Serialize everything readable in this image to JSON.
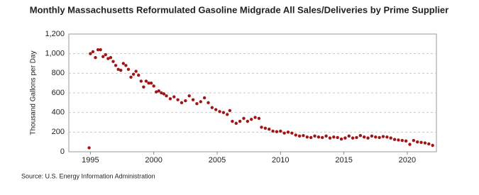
{
  "chart_data": {
    "type": "scatter",
    "title": "Monthly Massachusetts Reformulated Gasoline Midgrade All Sales/Deliveries by Prime Supplier",
    "y_label": "Thousand Gallons per Day",
    "source": "Source: U.S. Energy Information Administration",
    "color": "#a31515",
    "grid": true,
    "xlim": [
      1993.3,
      2022.3
    ],
    "xticks": [
      1995,
      2000,
      2005,
      2010,
      2015,
      2020
    ],
    "ylim": [
      0,
      1200
    ],
    "yticks": [
      0,
      200,
      400,
      600,
      800,
      {
        "value": 1000,
        "label": "1,000"
      },
      {
        "value": 1200,
        "label": "1,200"
      }
    ],
    "x": [
      1994.9,
      1995.0,
      1995.2,
      1995.4,
      1995.6,
      1995.8,
      1996.0,
      1996.2,
      1996.4,
      1996.6,
      1996.8,
      1997.0,
      1997.2,
      1997.4,
      1997.6,
      1997.8,
      1998.0,
      1998.2,
      1998.4,
      1998.6,
      1998.8,
      1999.0,
      1999.2,
      1999.4,
      1999.6,
      1999.8,
      2000.0,
      2000.2,
      2000.4,
      2000.6,
      2000.8,
      2001.0,
      2001.3,
      2001.6,
      2001.9,
      2002.2,
      2002.5,
      2002.8,
      2003.1,
      2003.4,
      2003.7,
      2004.0,
      2004.3,
      2004.6,
      2004.9,
      2005.2,
      2005.5,
      2005.8,
      2006.0,
      2006.2,
      2006.5,
      2006.8,
      2007.1,
      2007.4,
      2007.7,
      2008.0,
      2008.3,
      2008.5,
      2008.8,
      2009.1,
      2009.4,
      2009.7,
      2010.0,
      2010.3,
      2010.6,
      2010.9,
      2011.2,
      2011.5,
      2011.8,
      2012.1,
      2012.4,
      2012.7,
      2013.0,
      2013.3,
      2013.6,
      2013.9,
      2014.2,
      2014.5,
      2014.8,
      2015.1,
      2015.4,
      2015.7,
      2016.0,
      2016.3,
      2016.6,
      2016.9,
      2017.2,
      2017.5,
      2017.8,
      2018.1,
      2018.4,
      2018.7,
      2019.0,
      2019.3,
      2019.6,
      2019.9,
      2020.2,
      2020.5,
      2020.8,
      2021.1,
      2021.4,
      2021.7,
      2022.0
    ],
    "values": [
      40,
      1000,
      1020,
      960,
      1040,
      1040,
      970,
      990,
      950,
      960,
      920,
      880,
      840,
      830,
      900,
      880,
      840,
      760,
      790,
      820,
      780,
      720,
      660,
      720,
      700,
      700,
      670,
      610,
      620,
      600,
      590,
      570,
      540,
      560,
      530,
      500,
      520,
      570,
      530,
      490,
      510,
      550,
      500,
      450,
      430,
      410,
      400,
      380,
      420,
      310,
      290,
      310,
      340,
      310,
      330,
      350,
      340,
      250,
      240,
      230,
      210,
      205,
      210,
      190,
      200,
      190,
      170,
      160,
      165,
      150,
      145,
      160,
      150,
      145,
      160,
      140,
      150,
      145,
      130,
      140,
      160,
      140,
      145,
      165,
      150,
      140,
      160,
      150,
      145,
      155,
      150,
      140,
      125,
      120,
      115,
      110,
      75,
      115,
      100,
      95,
      90,
      80,
      65
    ]
  }
}
